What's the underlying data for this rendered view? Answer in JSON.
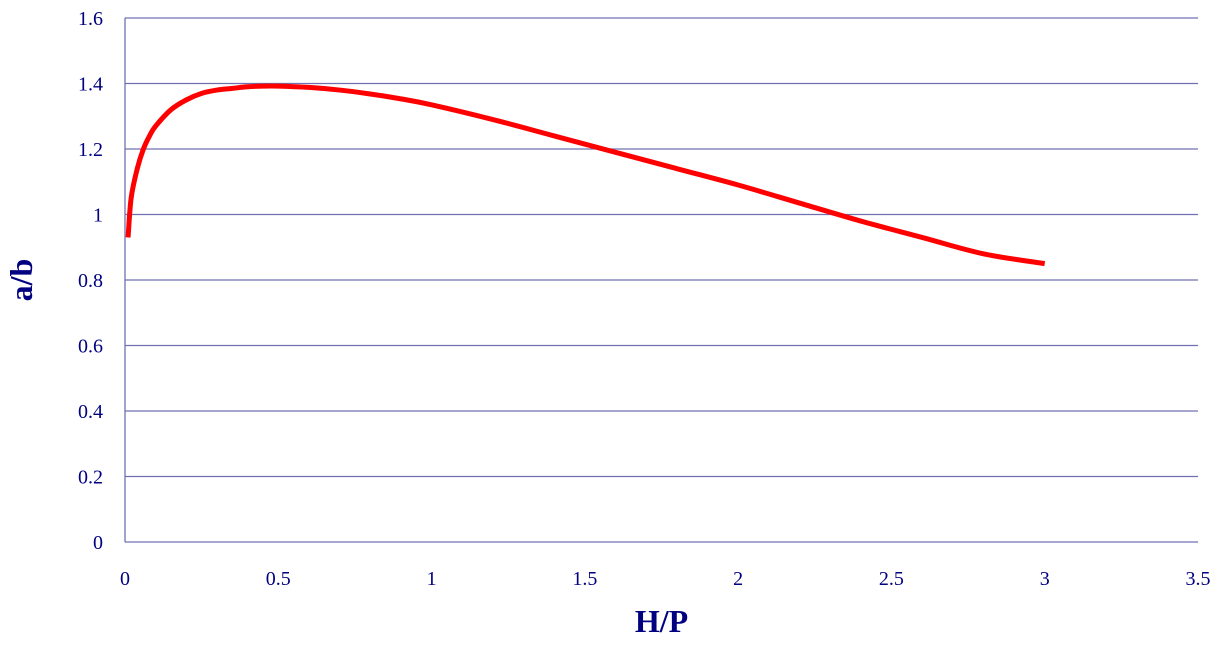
{
  "chart_data": {
    "type": "line",
    "title": "",
    "xlabel": "H/P",
    "ylabel": "a/b",
    "xlim": [
      0,
      3.5
    ],
    "ylim": [
      0,
      1.6
    ],
    "x_ticks": [
      "0",
      "0.5",
      "1",
      "1.5",
      "2",
      "2.5",
      "3",
      "3.5"
    ],
    "y_ticks": [
      "0",
      "0.2",
      "0.4",
      "0.6",
      "0.8",
      "1",
      "1.2",
      "1.4",
      "1.6"
    ],
    "grid": "horizontal",
    "legend": "none",
    "series": [
      {
        "x": [
          0.01,
          0.02,
          0.04,
          0.06,
          0.08,
          0.1,
          0.15,
          0.2,
          0.25,
          0.3,
          0.35,
          0.4,
          0.45,
          0.5,
          0.6,
          0.7,
          0.8,
          0.9,
          1.0,
          1.2,
          1.4,
          1.6,
          1.8,
          2.0,
          2.2,
          2.4,
          2.6,
          2.8,
          3.0
        ],
        "y": [
          0.93,
          1.05,
          1.14,
          1.2,
          1.24,
          1.27,
          1.32,
          1.35,
          1.37,
          1.38,
          1.385,
          1.39,
          1.392,
          1.392,
          1.388,
          1.38,
          1.368,
          1.353,
          1.335,
          1.29,
          1.24,
          1.19,
          1.14,
          1.09,
          1.035,
          0.98,
          0.93,
          0.88,
          0.85
        ],
        "color": "#ff0000"
      }
    ],
    "colors": {
      "axis_text": "#000080",
      "gridline": "#7070b0",
      "axis_line": "#7070b0",
      "series": "#ff0000"
    }
  }
}
